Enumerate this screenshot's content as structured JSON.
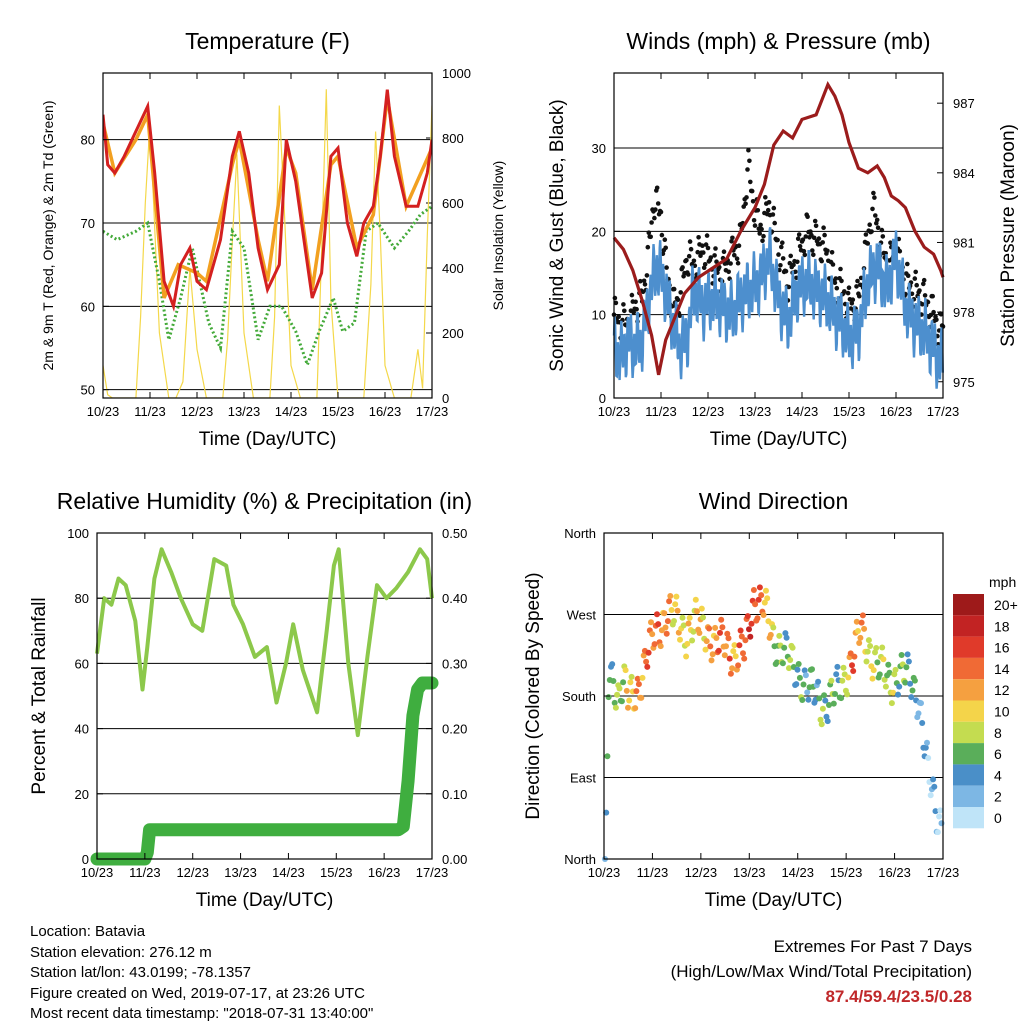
{
  "chart_data": [
    {
      "type": "line",
      "title": "Temperature (F)",
      "xlabel": "Time (Day/UTC)",
      "ylabel": "2m & 9m T (Red, Orange) & 2m Td (Green)",
      "y2label": "Solar Insolation (Yellow)",
      "xticks": [
        "10/23",
        "11/23",
        "12/23",
        "13/23",
        "14/23",
        "15/23",
        "16/23",
        "17/23"
      ],
      "ylim": [
        49,
        88
      ],
      "yticks": [
        50,
        60,
        70,
        80
      ],
      "y2lim": [
        0,
        1000
      ],
      "y2ticks": [
        0,
        200,
        400,
        600,
        800,
        1000
      ],
      "grid": "horizontal",
      "series": [
        {
          "color": "#d42020",
          "style": "line",
          "axis": "left",
          "x": [
            0,
            0.1,
            0.25,
            0.45,
            0.7,
            0.95,
            1.1,
            1.3,
            1.5,
            1.65,
            1.85,
            2.0,
            2.2,
            2.5,
            2.75,
            2.9,
            3.1,
            3.3,
            3.5,
            3.75,
            3.9,
            4.1,
            4.3,
            4.45,
            4.65,
            4.85,
            5.0,
            5.2,
            5.4,
            5.55,
            5.75,
            5.9,
            6.05,
            6.2,
            6.45,
            6.7,
            6.9,
            7.0
          ],
          "values": [
            83,
            77,
            76,
            78,
            81,
            84,
            76,
            63,
            60,
            65,
            67,
            63,
            62,
            68,
            78,
            81,
            76,
            67,
            62,
            65,
            80,
            75,
            67,
            61,
            64,
            78,
            79,
            70,
            66,
            70,
            72,
            78,
            86,
            78,
            72,
            72,
            76,
            80
          ]
        },
        {
          "color": "#f2a020",
          "style": "line",
          "axis": "left",
          "x": [
            0,
            0.25,
            0.7,
            0.95,
            1.3,
            1.6,
            2.0,
            2.2,
            2.75,
            2.9,
            3.3,
            3.5,
            3.9,
            4.1,
            4.45,
            4.85,
            5.0,
            5.4,
            5.75,
            6.05,
            6.45,
            7.0
          ],
          "values": [
            82,
            76,
            80,
            83,
            61,
            65,
            64,
            63,
            77,
            80,
            68,
            63,
            79,
            76,
            62,
            77,
            78,
            67,
            71,
            85,
            72,
            79
          ]
        },
        {
          "color": "#44aa3a",
          "style": "dotted",
          "axis": "left",
          "x": [
            0,
            0.3,
            0.7,
            0.95,
            1.2,
            1.4,
            1.65,
            1.9,
            2.25,
            2.5,
            2.75,
            3.0,
            3.3,
            3.55,
            3.8,
            4.1,
            4.35,
            4.6,
            4.9,
            5.1,
            5.35,
            5.6,
            5.85,
            6.2,
            6.5,
            6.75,
            7.0
          ],
          "values": [
            69,
            68,
            69,
            70,
            63,
            56,
            61,
            67,
            58,
            55,
            69,
            67,
            56,
            60,
            60,
            57,
            53,
            57,
            61,
            57,
            58,
            69,
            70,
            67,
            69,
            71,
            72
          ]
        },
        {
          "color": "#f4d84a",
          "style": "thin",
          "axis": "right",
          "x": [
            0,
            0.1,
            0.2,
            0.35,
            0.5,
            0.7,
            0.8,
            0.9,
            1.0,
            1.2,
            1.4,
            1.55,
            1.7,
            1.85,
            2.0,
            2.2,
            2.4,
            2.55,
            2.65,
            2.75,
            2.85,
            3.0,
            3.2,
            3.4,
            3.55,
            3.65,
            3.75,
            3.85,
            4.0,
            4.2,
            4.4,
            4.55,
            4.65,
            4.75,
            4.85,
            5.0,
            5.2,
            5.4,
            5.55,
            5.7,
            5.8,
            5.9,
            6.0,
            6.2,
            6.4,
            6.55,
            6.7,
            6.8,
            6.9,
            7.0
          ],
          "values": [
            100,
            10,
            0,
            0,
            0,
            0,
            250,
            600,
            850,
            200,
            0,
            0,
            50,
            400,
            150,
            0,
            0,
            0,
            180,
            480,
            750,
            200,
            0,
            0,
            0,
            250,
            900,
            600,
            100,
            0,
            0,
            0,
            450,
            950,
            300,
            0,
            0,
            0,
            0,
            350,
            820,
            500,
            100,
            0,
            0,
            0,
            150,
            30,
            500,
            900
          ]
        }
      ]
    },
    {
      "type": "line",
      "title": "Winds (mph) & Pressure (mb)",
      "xlabel": "Time (Day/UTC)",
      "ylabel": "Sonic Wind & Gust (Blue, Black)",
      "y2label": "Station Pressure (Maroon)",
      "xticks": [
        "10/23",
        "11/23",
        "12/23",
        "13/23",
        "14/23",
        "15/23",
        "16/23",
        "17/23"
      ],
      "ylim": [
        0,
        39
      ],
      "yticks": [
        0,
        10,
        20,
        30
      ],
      "y2lim": [
        974.3,
        988.3
      ],
      "y2ticks": [
        975,
        978,
        981,
        984,
        987
      ],
      "grid": "horizontal",
      "series": [
        {
          "color": "#4d8fce",
          "style": "line",
          "axis": "left",
          "x": [
            0,
            0.15,
            0.3,
            0.45,
            0.6,
            0.75,
            0.9,
            1.05,
            1.25,
            1.4,
            1.55,
            1.7,
            1.9,
            2.1,
            2.3,
            2.5,
            2.7,
            2.9,
            3.1,
            3.3,
            3.5,
            3.7,
            3.9,
            4.1,
            4.3,
            4.5,
            4.7,
            4.85,
            5.0,
            5.2,
            5.4,
            5.6,
            5.8,
            6.0,
            6.2,
            6.4,
            6.6,
            6.8,
            6.95,
            7.0
          ],
          "values": [
            6,
            5,
            7,
            6,
            7,
            12,
            16,
            14,
            9,
            6,
            7,
            13,
            11,
            12,
            11,
            10,
            12,
            13,
            14,
            17,
            12,
            9,
            13,
            14,
            13,
            12,
            10,
            9,
            7,
            8,
            14,
            16,
            13,
            17,
            11,
            9,
            8,
            6,
            4,
            5
          ]
        },
        {
          "color": "#111111",
          "style": "dots",
          "axis": "left",
          "x": [
            0,
            0.15,
            0.3,
            0.45,
            0.6,
            0.75,
            0.85,
            1.0,
            1.1,
            1.25,
            1.4,
            1.55,
            1.7,
            1.9,
            2.1,
            2.3,
            2.5,
            2.7,
            2.85,
            2.95,
            3.1,
            3.3,
            3.5,
            3.7,
            3.9,
            4.1,
            4.3,
            4.5,
            4.7,
            4.85,
            5.0,
            5.2,
            5.4,
            5.5,
            5.6,
            5.7,
            5.85,
            6.0,
            6.2,
            6.4,
            6.6,
            6.8,
            6.95,
            7.0
          ],
          "values": [
            10,
            9,
            9,
            11,
            12,
            18,
            24,
            22,
            16,
            11,
            12,
            17,
            16,
            18,
            16,
            15,
            17,
            19,
            28,
            24,
            20,
            23,
            18,
            14,
            17,
            20,
            19,
            18,
            14,
            13,
            11,
            12,
            19,
            23,
            21,
            18,
            16,
            18,
            14,
            13,
            12,
            10,
            8,
            9
          ]
        },
        {
          "color": "#9b1c1c",
          "style": "line",
          "axis": "right",
          "x": [
            0,
            0.2,
            0.4,
            0.6,
            0.8,
            0.95,
            1.1,
            1.3,
            1.5,
            1.8,
            2.1,
            2.4,
            2.7,
            3.0,
            3.2,
            3.4,
            3.6,
            3.8,
            4.0,
            4.3,
            4.55,
            4.7,
            4.85,
            5.0,
            5.2,
            5.4,
            5.6,
            5.75,
            5.9,
            6.05,
            6.2,
            6.4,
            6.6,
            6.8,
            6.95,
            7.0
          ],
          "values": [
            981.2,
            980.7,
            979.8,
            978.5,
            977.0,
            975.3,
            976.8,
            977.8,
            978.8,
            979.5,
            979.9,
            980.3,
            981.5,
            982.5,
            983.5,
            985.2,
            985.8,
            985.5,
            986.3,
            986.5,
            987.8,
            987.3,
            986.5,
            985.3,
            984.2,
            984.0,
            984.3,
            983.8,
            983.0,
            982.8,
            982.5,
            981.5,
            980.8,
            980.5,
            979.8,
            979.5
          ]
        }
      ]
    },
    {
      "type": "line",
      "title": "Relative Humidity (%) & Precipitation (in)",
      "xlabel": "Time (Day/UTC)",
      "ylabel": "Percent & Total Rainfall",
      "xticks": [
        "10/23",
        "11/23",
        "12/23",
        "13/23",
        "14/23",
        "15/23",
        "16/23",
        "17/23"
      ],
      "ylim": [
        0,
        100
      ],
      "yticks": [
        0,
        20,
        40,
        60,
        80,
        100
      ],
      "y2lim": [
        0,
        0.5
      ],
      "y2ticks": [
        "0.00",
        "0.10",
        "0.20",
        "0.30",
        "0.40",
        "0.50"
      ],
      "grid": "horizontal",
      "series": [
        {
          "color": "#8cc84b",
          "style": "line",
          "axis": "left",
          "x": [
            0,
            0.15,
            0.3,
            0.45,
            0.6,
            0.8,
            0.95,
            1.05,
            1.2,
            1.35,
            1.55,
            1.75,
            2.0,
            2.2,
            2.45,
            2.7,
            2.85,
            3.05,
            3.3,
            3.55,
            3.75,
            3.95,
            4.1,
            4.3,
            4.6,
            4.8,
            4.95,
            5.05,
            5.25,
            5.45,
            5.65,
            5.85,
            6.05,
            6.25,
            6.5,
            6.75,
            6.9,
            7.0
          ],
          "values": [
            63,
            80,
            78,
            86,
            84,
            73,
            52,
            65,
            86,
            95,
            88,
            80,
            72,
            70,
            92,
            90,
            78,
            72,
            62,
            65,
            48,
            60,
            72,
            58,
            45,
            70,
            90,
            95,
            60,
            38,
            62,
            84,
            80,
            83,
            88,
            95,
            92,
            80
          ]
        },
        {
          "color": "#3fae3f",
          "style": "thick",
          "axis": "right",
          "x": [
            0,
            1.0,
            1.05,
            1.1,
            5.0,
            6.0,
            6.3,
            6.4,
            6.5,
            6.6,
            6.7,
            6.8,
            7.0
          ],
          "values": [
            0,
            0,
            0.01,
            0.045,
            0.045,
            0.045,
            0.045,
            0.05,
            0.12,
            0.22,
            0.26,
            0.27,
            0.27
          ]
        }
      ]
    },
    {
      "type": "scatter",
      "title": "Wind Direction",
      "xlabel": "Time (Day/UTC)",
      "ylabel": "Direction (Colored By Speed)",
      "xticks": [
        "10/23",
        "11/23",
        "12/23",
        "13/23",
        "14/23",
        "15/23",
        "16/23",
        "17/23"
      ],
      "yticks": [
        "North",
        "East",
        "South",
        "West",
        "North"
      ],
      "ylim": [
        0,
        360
      ],
      "grid": "horizontal",
      "colorbar": {
        "title": "mph",
        "labels": [
          "20+",
          "18",
          "16",
          "14",
          "12",
          "10",
          "8",
          "6",
          "4",
          "2",
          "0"
        ],
        "colors": [
          "#9e1a1a",
          "#c22323",
          "#e03a2a",
          "#f06a35",
          "#f5a040",
          "#f4d44a",
          "#c4dc50",
          "#5aae5a",
          "#4a8fc8",
          "#7db7e4",
          "#bfe4f8"
        ]
      },
      "series": [
        {
          "x": [
            0.05,
            0.1,
            0.2,
            0.3,
            0.4,
            0.5,
            0.7,
            0.9,
            1.1,
            1.3,
            1.5,
            1.7,
            1.9,
            2.1,
            2.3,
            2.5,
            2.7,
            2.9,
            3.1,
            3.3,
            3.5,
            3.7,
            3.9,
            4.1,
            4.3,
            4.5,
            4.7,
            4.9,
            5.1,
            5.3,
            5.5,
            5.7,
            5.9,
            6.1,
            6.3,
            6.5,
            6.7,
            6.9
          ],
          "values": [
            45,
            210,
            200,
            180,
            195,
            175,
            190,
            225,
            255,
            270,
            265,
            250,
            260,
            255,
            235,
            240,
            225,
            230,
            290,
            280,
            240,
            235,
            210,
            200,
            185,
            170,
            180,
            190,
            220,
            250,
            230,
            210,
            195,
            205,
            200,
            180,
            90,
            45
          ],
          "speed": [
            3,
            6,
            6,
            7,
            8,
            10,
            12,
            14,
            14,
            12,
            10,
            9,
            10,
            11,
            13,
            14,
            12,
            15,
            16,
            12,
            8,
            6,
            7,
            5,
            4,
            6,
            6,
            5,
            14,
            12,
            9,
            7,
            8,
            6,
            5,
            3,
            2,
            2
          ]
        }
      ]
    }
  ],
  "info": {
    "location": "Location: Batavia",
    "elevation": "Station elevation: 276.12 m",
    "latlon": "Station lat/lon: 43.0199; -78.1357",
    "created": "Figure created on Wed, 2019-07-17, at 23:26 UTC",
    "timestamp": "Most recent data timestamp: \"2018-07-31 13:40:00\""
  },
  "extremes": {
    "title": "Extremes For Past 7 Days",
    "subtitle": "(High/Low/Max Wind/Total Precipitation)",
    "values": "87.4/59.4/23.5/0.28"
  }
}
